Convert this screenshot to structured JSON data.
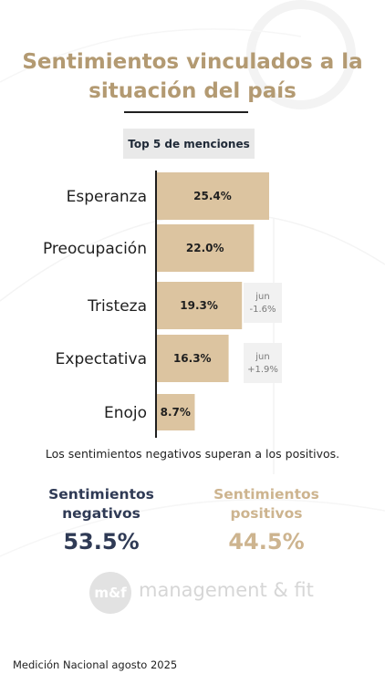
{
  "title": "Sentimientos vinculados a la situación del país",
  "subtitle_chip": "Top 5 de menciones",
  "chart_data": {
    "type": "bar",
    "orientation": "horizontal",
    "categories": [
      "Esperanza",
      "Preocupación",
      "Tristeza",
      "Expectativa",
      "Enojo"
    ],
    "values": [
      25.4,
      22.0,
      19.3,
      16.3,
      8.7
    ],
    "value_labels": [
      "25.4%",
      "22.0%",
      "19.3%",
      "16.3%",
      "8.7%"
    ],
    "bar_color": "#dcc4a0",
    "annotations": [
      {
        "category": "Tristeza",
        "text": "jun\n-1.6%"
      },
      {
        "category": "Expectativa",
        "text": "jun\n+1.9%"
      }
    ]
  },
  "note": "Los sentimientos negativos superan a los positivos.",
  "summary": {
    "negative": {
      "label": "Sentimientos negativos",
      "value": "53.5%",
      "color": "#2f3a55"
    },
    "positive": {
      "label": "Sentimientos positivos",
      "value": "44.5%",
      "color": "#cdb48f"
    }
  },
  "brand": {
    "logo_mark": "m&f",
    "name": "management & fit"
  },
  "footer": "Medición Nacional agosto 2025",
  "colors": {
    "accent": "#b39a72",
    "bar": "#dcc4a0",
    "dark": "#2f3a55"
  }
}
